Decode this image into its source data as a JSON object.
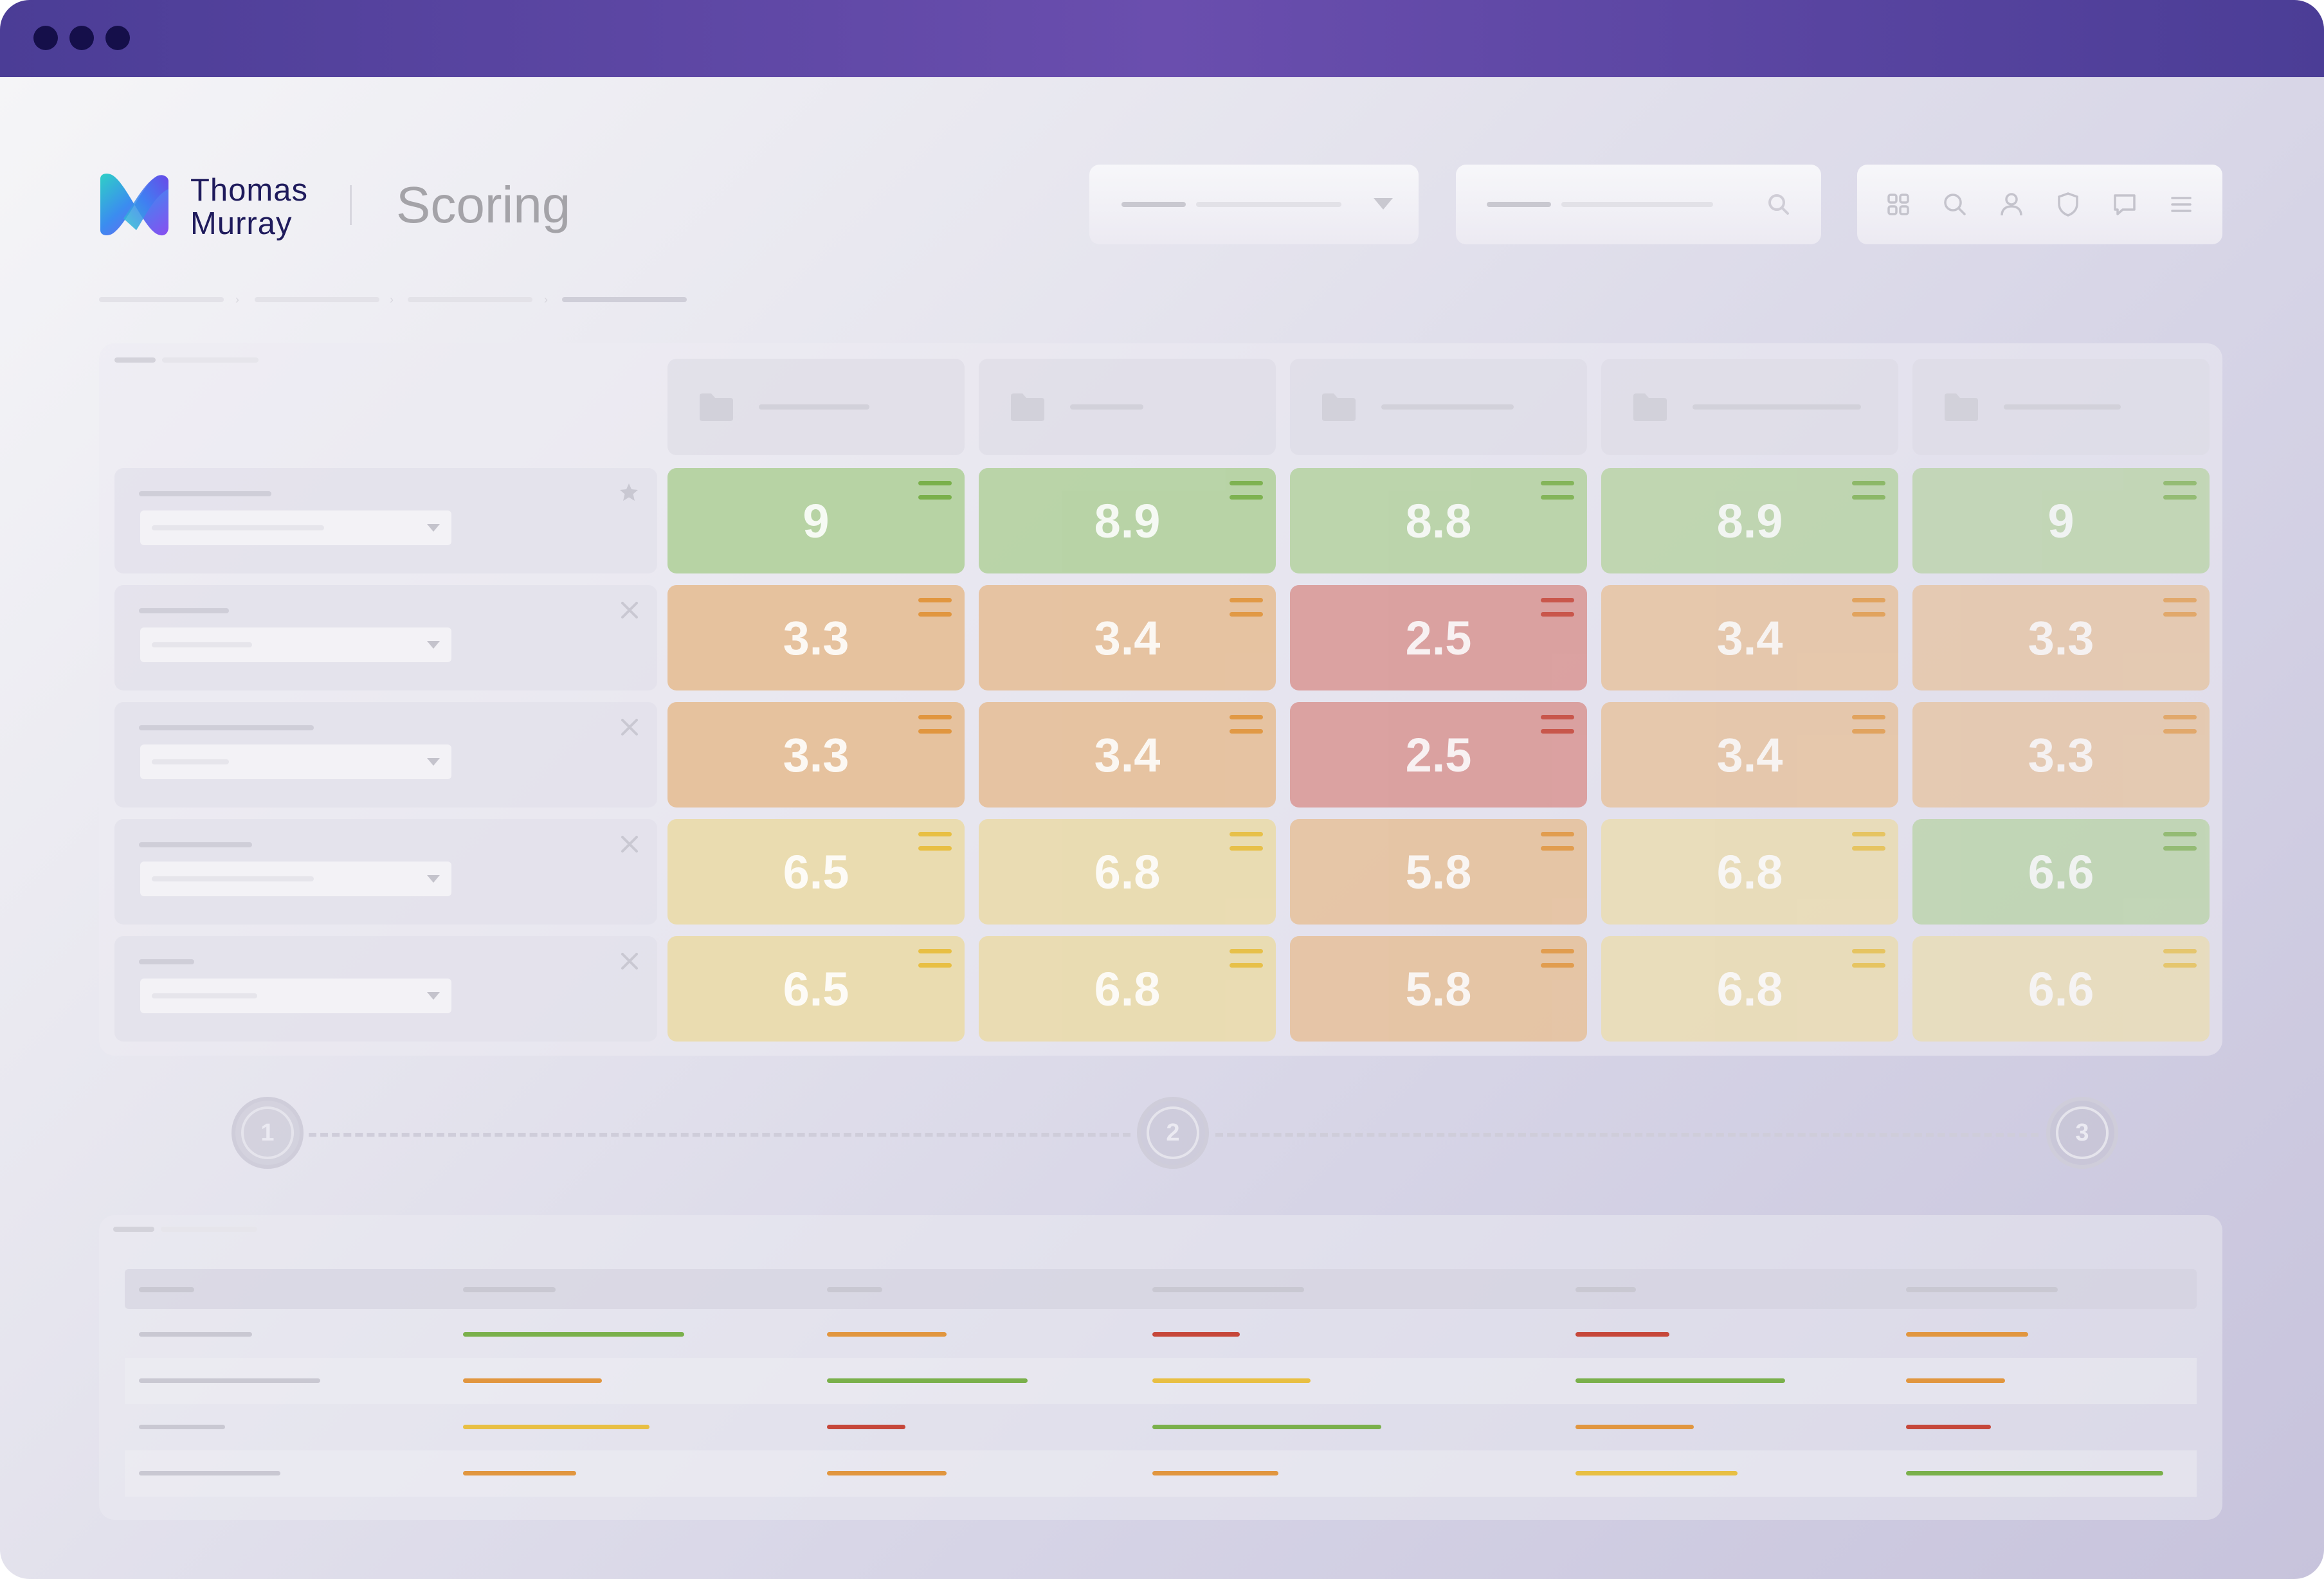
{
  "window": {
    "controls": [
      "dot-1",
      "dot-2",
      "dot-3"
    ],
    "colors": {
      "titlebar": "#5a46a4",
      "dots": "#150f4a"
    }
  },
  "header": {
    "brand_line1": "Thomas",
    "brand_line2": "Murray",
    "title": "Scoring",
    "toolbar_icons": [
      "grid-icon",
      "search-icon",
      "user-icon",
      "shield-icon",
      "chat-icon",
      "menu-icon"
    ]
  },
  "scoring": {
    "rows": [
      {
        "icon": "star-icon",
        "scores": [
          "9",
          "8.9",
          "8.8",
          "8.9",
          "9"
        ],
        "levels": [
          "green",
          "green",
          "green",
          "green",
          "green"
        ]
      },
      {
        "icon": "close-icon",
        "scores": [
          "3.3",
          "3.4",
          "2.5",
          "3.4",
          "3.3"
        ],
        "levels": [
          "orange",
          "orange",
          "red",
          "orange",
          "orange"
        ]
      },
      {
        "icon": "close-icon",
        "scores": [
          "3.3",
          "3.4",
          "2.5",
          "3.4",
          "3.3"
        ],
        "levels": [
          "orange",
          "orange",
          "red",
          "orange",
          "orange"
        ]
      },
      {
        "icon": "close-icon",
        "scores": [
          "6.5",
          "6.8",
          "5.8",
          "6.8",
          "6.6"
        ],
        "levels": [
          "yellow",
          "yellow",
          "orange",
          "yellow",
          "green"
        ]
      },
      {
        "icon": "close-icon",
        "scores": [
          "6.5",
          "6.8",
          "5.8",
          "6.8",
          "6.6"
        ],
        "levels": [
          "yellow",
          "yellow",
          "orange",
          "yellow",
          "yellow"
        ]
      }
    ],
    "colors": {
      "green": "#b7d3a4",
      "orange": "#e6c29e",
      "red": "#d99a98",
      "yellow": "#eadcb0",
      "bar_green": "#7ab04b",
      "bar_orange": "#e1963f",
      "bar_red": "#c6473a",
      "bar_yellow": "#e8bf43"
    }
  },
  "stepper": {
    "steps": [
      "1",
      "2",
      "3"
    ]
  },
  "summary_table": {
    "rows": [
      [
        "green",
        "orange",
        "red",
        "red",
        "orange"
      ],
      [
        "orange",
        "green",
        "yellow",
        "green",
        "orange"
      ],
      [
        "yellow",
        "red",
        "green",
        "orange",
        "red"
      ],
      [
        "orange",
        "orange",
        "orange",
        "yellow",
        "green"
      ]
    ]
  }
}
